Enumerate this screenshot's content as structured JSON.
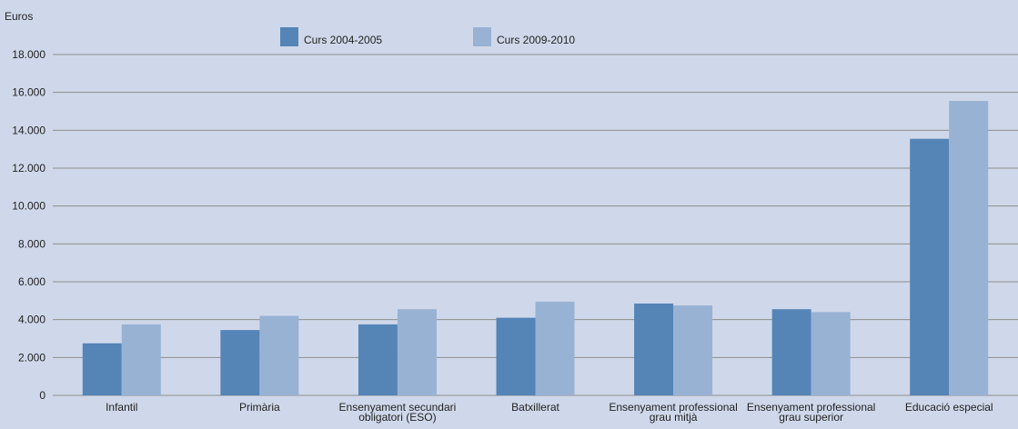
{
  "chart_data": {
    "type": "bar",
    "ylabel": "Euros",
    "ylim": [
      0,
      18000
    ],
    "yticks": [
      {
        "value": 0,
        "label": "0"
      },
      {
        "value": 2000,
        "label": "2.000"
      },
      {
        "value": 4000,
        "label": "4.000"
      },
      {
        "value": 6000,
        "label": "6.000"
      },
      {
        "value": 8000,
        "label": "8.000"
      },
      {
        "value": 10000,
        "label": "10.000"
      },
      {
        "value": 12000,
        "label": "12.000"
      },
      {
        "value": 14000,
        "label": "14.000"
      },
      {
        "value": 16000,
        "label": "16.000"
      },
      {
        "value": 18000,
        "label": "18.000"
      }
    ],
    "grid": true,
    "legend_position": "top",
    "categories": [
      [
        "Infantil"
      ],
      [
        "Primària"
      ],
      [
        "Ensenyament secundari",
        "obligatori (ESO)"
      ],
      [
        "Batxillerat"
      ],
      [
        "Ensenyament professional",
        "grau mitjà"
      ],
      [
        "Ensenyament professional",
        "grau superior"
      ],
      [
        "Educació especial"
      ]
    ],
    "series": [
      {
        "name": "Curs 2004-2005",
        "color": "#5584b7",
        "values": [
          2750,
          3450,
          3750,
          4100,
          4850,
          4550,
          13550
        ]
      },
      {
        "name": "Curs 2009-2010",
        "color": "#98b2d4",
        "values": [
          3750,
          4200,
          4550,
          4950,
          4750,
          4400,
          15550
        ]
      }
    ]
  }
}
